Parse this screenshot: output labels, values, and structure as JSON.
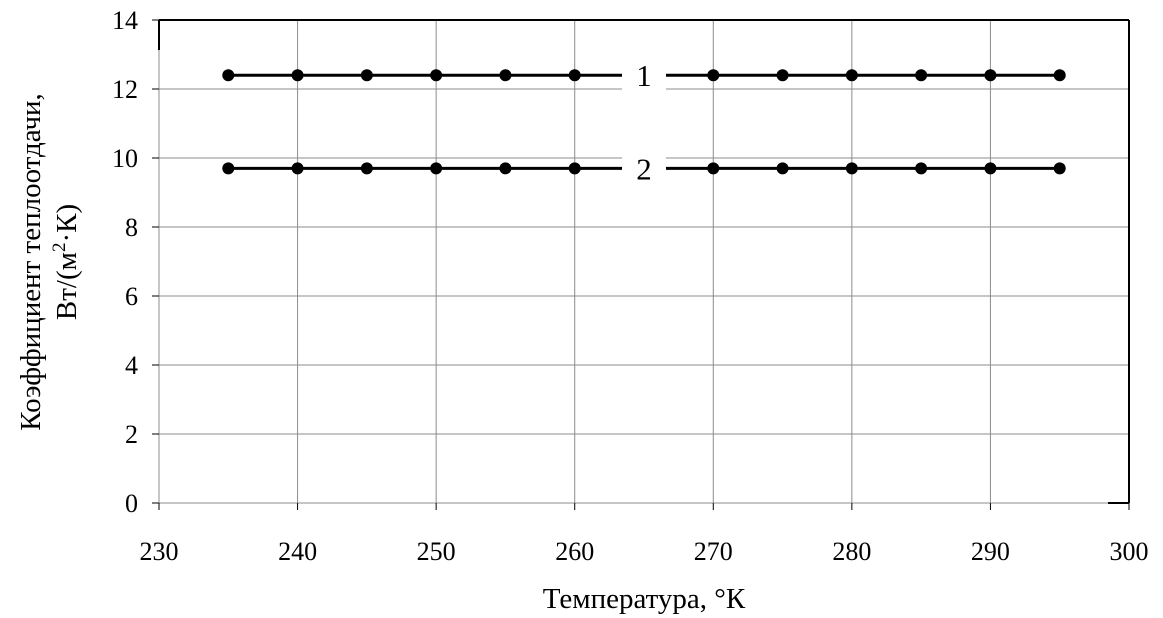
{
  "chart_data": {
    "type": "line",
    "title": "",
    "xlabel": "Температура, °К",
    "ylabel_lines": [
      "Коэффициент теплоотдачи,",
      "Вт/(м",
      "2",
      "·К)"
    ],
    "xlim": [
      230,
      300
    ],
    "ylim": [
      0,
      14
    ],
    "x_ticks": [
      "230",
      "240",
      "250",
      "260",
      "270",
      "280",
      "290",
      "300"
    ],
    "y_ticks": [
      "0",
      "2",
      "4",
      "6",
      "8",
      "10",
      "12",
      "14"
    ],
    "grid": true,
    "legend": "none",
    "series": [
      {
        "name": "1",
        "color": "#000000",
        "x": [
          235,
          240,
          245,
          250,
          255,
          260,
          270,
          275,
          280,
          285,
          290,
          295
        ],
        "y": [
          12.4,
          12.4,
          12.4,
          12.4,
          12.4,
          12.4,
          12.4,
          12.4,
          12.4,
          12.4,
          12.4,
          12.4
        ],
        "label_x": 265
      },
      {
        "name": "2",
        "color": "#000000",
        "x": [
          235,
          240,
          245,
          250,
          255,
          260,
          270,
          275,
          280,
          285,
          290,
          295
        ],
        "y": [
          9.7,
          9.7,
          9.7,
          9.7,
          9.7,
          9.7,
          9.7,
          9.7,
          9.7,
          9.7,
          9.7,
          9.7
        ],
        "label_x": 265
      }
    ]
  }
}
